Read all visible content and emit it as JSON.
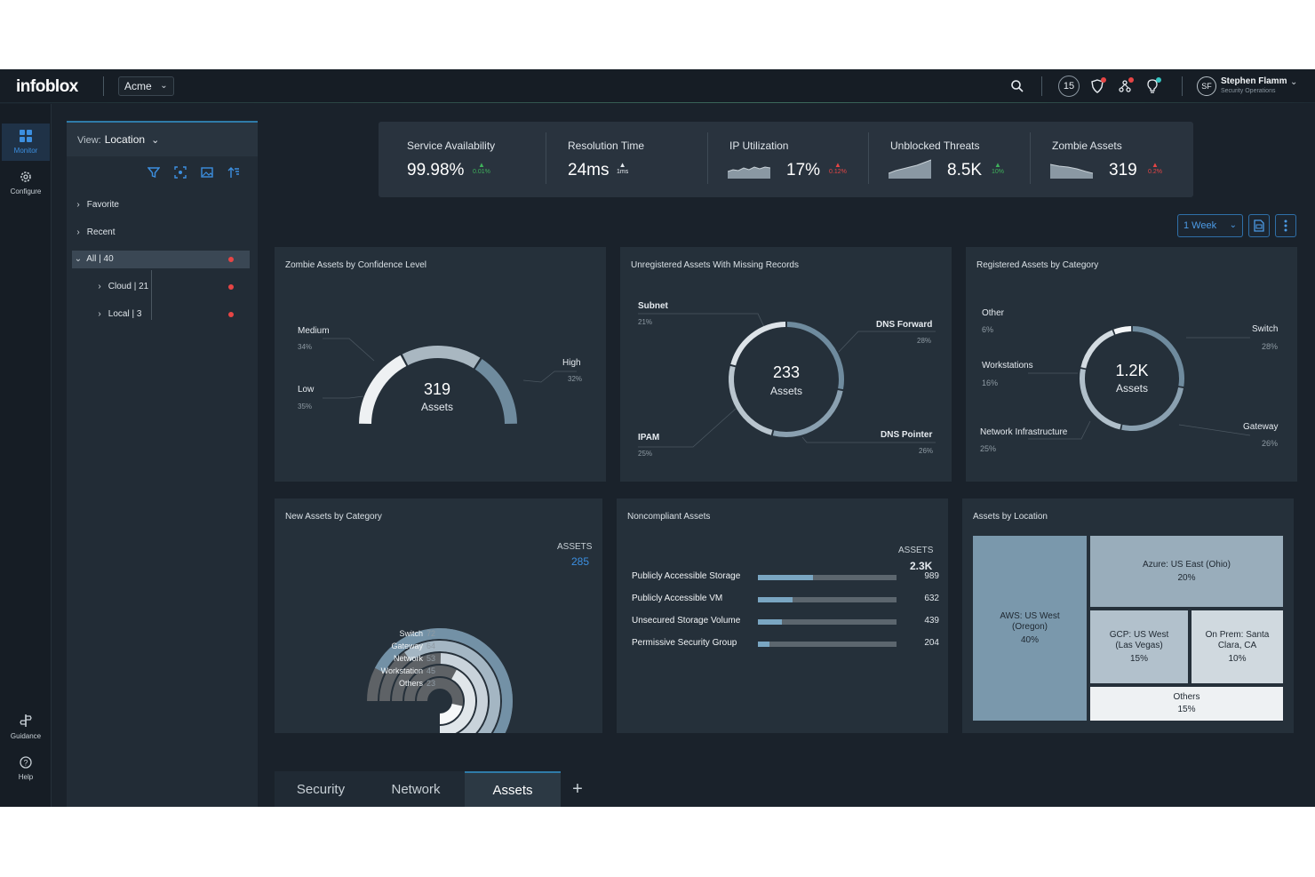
{
  "header": {
    "logo": "infoblox",
    "org": "Acme",
    "notification_count": "15",
    "user_initials": "SF",
    "user_name": "Stephen Flamm",
    "user_role": "Security Operations"
  },
  "rail": {
    "monitor": "Monitor",
    "configure": "Configure",
    "guidance": "Guidance",
    "help": "Help"
  },
  "location_panel": {
    "view_label": "View:",
    "view_value": "Location",
    "tree": [
      {
        "label": "Favorite"
      },
      {
        "label": "Recent"
      },
      {
        "label": "All | 40"
      },
      {
        "label": "Cloud | 21"
      },
      {
        "label": "Local | 3"
      }
    ]
  },
  "kpis": [
    {
      "label": "Service Availability",
      "value": "99.98%",
      "delta": "0.01%",
      "trend": "up-green"
    },
    {
      "label": "Resolution Time",
      "value": "24ms",
      "delta": "1ms",
      "trend": "up-white"
    },
    {
      "label": "IP Utilization",
      "value": "17%",
      "delta": "0.12%",
      "trend": "up-red"
    },
    {
      "label": "Unblocked Threats",
      "value": "8.5K",
      "delta": "10%",
      "trend": "up-green"
    },
    {
      "label": "Zombie Assets",
      "value": "319",
      "delta": "0.2%",
      "trend": "up-red"
    }
  ],
  "controls": {
    "time_range": "1 Week"
  },
  "cards": {
    "zombie": {
      "title": "Zombie Assets by Confidence Level",
      "total": "319",
      "unit": "Assets",
      "segments": [
        {
          "label": "Low",
          "pct": "35%",
          "value": 35,
          "color": "#eef1f3"
        },
        {
          "label": "Medium",
          "pct": "34%",
          "value": 34,
          "color": "#a9b7c1"
        },
        {
          "label": "High",
          "pct": "32%",
          "value": 32,
          "color": "#6f8b9e"
        }
      ]
    },
    "unregistered": {
      "title": "Unregistered Assets With Missing Records",
      "total": "233",
      "unit": "Assets",
      "segments": [
        {
          "label": "DNS Forward",
          "pct": "28%",
          "value": 28,
          "color": "#6f8b9e"
        },
        {
          "label": "DNS Pointer",
          "pct": "26%",
          "value": 26,
          "color": "#8aa0b0"
        },
        {
          "label": "IPAM",
          "pct": "25%",
          "value": 25,
          "color": "#b9c5ce"
        },
        {
          "label": "Subnet",
          "pct": "21%",
          "value": 21,
          "color": "#dde3e8"
        }
      ]
    },
    "registered": {
      "title": "Registered Assets by Category",
      "total": "1.2K",
      "unit": "Assets",
      "segments": [
        {
          "label": "Switch",
          "pct": "28%",
          "value": 28,
          "color": "#6f8b9e"
        },
        {
          "label": "Gateway",
          "pct": "26%",
          "value": 26,
          "color": "#8aa0b0"
        },
        {
          "label": "Network Infrastructure",
          "pct": "25%",
          "value": 25,
          "color": "#b0bfca"
        },
        {
          "label": "Workstations",
          "pct": "16%",
          "value": 16,
          "color": "#d3dbe1"
        },
        {
          "label": "Other",
          "pct": "6%",
          "value": 6,
          "color": "#f4f6f8"
        }
      ]
    },
    "new_assets": {
      "title": "New Assets by Category",
      "assets_label": "ASSETS",
      "assets_total": "285",
      "rings": [
        {
          "label": "Switch",
          "value": 72,
          "color": "#7391a6"
        },
        {
          "label": "Gateway",
          "value": 64,
          "color": "#a4b6c3"
        },
        {
          "label": "Network",
          "value": 53,
          "color": "#c9d3db"
        },
        {
          "label": "Workstation",
          "value": 45,
          "color": "#e0e6ea"
        },
        {
          "label": "Others",
          "value": 23,
          "color": "#f6f8f9"
        }
      ],
      "remainder_color": "#5e6266"
    },
    "noncompliant": {
      "title": "Noncompliant Assets",
      "assets_label": "ASSETS",
      "assets_total": "2.3K",
      "rows": [
        {
          "label": "Publicly Accessible Storage",
          "value": 989
        },
        {
          "label": "Publicly Accessible VM",
          "value": 632
        },
        {
          "label": "Unsecured Storage Volume",
          "value": 439
        },
        {
          "label": "Permissive Security Group",
          "value": 204
        }
      ],
      "bar_max": 2500
    },
    "location": {
      "title": "Assets by Location",
      "tiles": [
        {
          "label": "AWS: US West (Oregon)",
          "pct": "40%"
        },
        {
          "label": "Azure: US East (Ohio)",
          "pct": "20%"
        },
        {
          "label": "GCP: US West (Las Vegas)",
          "pct": "15%"
        },
        {
          "label": "On Prem: Santa Clara, CA",
          "pct": "10%"
        },
        {
          "label": "Others",
          "pct": "15%"
        }
      ]
    }
  },
  "tabs": [
    {
      "label": "Security"
    },
    {
      "label": "Network"
    },
    {
      "label": "Assets"
    }
  ],
  "tab_add": "+"
}
